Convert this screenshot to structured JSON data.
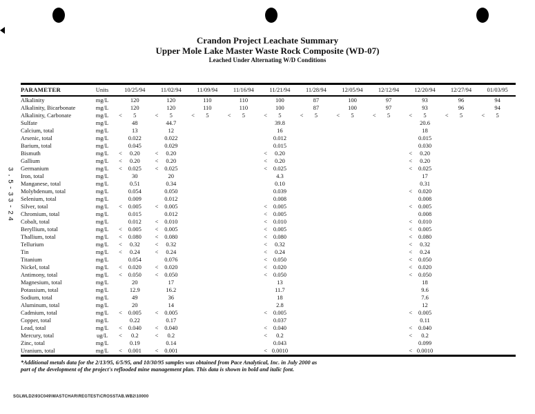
{
  "page": {
    "title": "Crandon Project Leachate Summary",
    "subtitle": "Upper Mole Lake Master Waste Rock Composite (WD-07)",
    "subtitle2": "Leached Under Alternating W/D Conditions",
    "side_label": "3.5-33-24",
    "footer_path": "SGLWLD2\\93C049\\WASTCHAR\\REGTEST\\CROSSTAB.WB2\\10000",
    "footnote": "*Additional metals data for the 2/13/95, 6/5/95, and 10/30/95 samples was obtained from Pace Analytical, Inc. in July 2000 as part of the development of the project's reflooded mine management plan.  This data is shown in bold and italic font.",
    "ink_color": "#121212",
    "paper_color": "#ffffff"
  },
  "table": {
    "param_header": "PARAMETER",
    "units_header": "Units",
    "date_columns": [
      "10/25/94",
      "11/02/94",
      "11/09/94",
      "11/16/94",
      "11/21/94",
      "11/28/94",
      "12/05/94",
      "12/12/94",
      "12/20/94",
      "12/27/94",
      "01/03/95"
    ],
    "rows": [
      {
        "parameter": "Alkalinity",
        "units": "mg/L",
        "values": [
          "120",
          "120",
          "110",
          "110",
          "100",
          "87",
          "100",
          "97",
          "93",
          "96",
          "94"
        ]
      },
      {
        "parameter": "Alkalinity, Bicarbonate",
        "units": "mg/L",
        "values": [
          "120",
          "120",
          "110",
          "110",
          "100",
          "87",
          "100",
          "97",
          "93",
          "96",
          "94"
        ]
      },
      {
        "parameter": "Alkalinity, Carbonate",
        "units": "mg/L",
        "values": [
          "< 5",
          "< 5",
          "< 5",
          "< 5",
          "< 5",
          "< 5",
          "< 5",
          "< 5",
          "< 5",
          "< 5",
          "< 5"
        ]
      },
      {
        "parameter": "Sulfate",
        "units": "mg/L",
        "values": [
          "48",
          "44.7",
          "",
          "",
          "39.8",
          "",
          "",
          "",
          "20.6",
          "",
          ""
        ]
      },
      {
        "parameter": "Calcium, total",
        "units": "mg/L",
        "values": [
          "13",
          "12",
          "",
          "",
          "16",
          "",
          "",
          "",
          "18",
          "",
          ""
        ]
      },
      {
        "parameter": "Arsenic, total",
        "units": "mg/L",
        "values": [
          "0.022",
          "0.022",
          "",
          "",
          "0.012",
          "",
          "",
          "",
          "0.015",
          "",
          ""
        ]
      },
      {
        "parameter": "Barium, total",
        "units": "mg/L",
        "values": [
          "0.045",
          "0.029",
          "",
          "",
          "0.015",
          "",
          "",
          "",
          "0.030",
          "",
          ""
        ]
      },
      {
        "parameter": "Bismuth",
        "units": "mg/L",
        "values": [
          "< 0.20",
          "< 0.20",
          "",
          "",
          "< 0.20",
          "",
          "",
          "",
          "< 0.20",
          "",
          ""
        ]
      },
      {
        "parameter": "Gallium",
        "units": "mg/L",
        "values": [
          "< 0.20",
          "< 0.20",
          "",
          "",
          "< 0.20",
          "",
          "",
          "",
          "< 0.20",
          "",
          ""
        ]
      },
      {
        "parameter": "Germanium",
        "units": "mg/L",
        "values": [
          "< 0.025",
          "< 0.025",
          "",
          "",
          "< 0.025",
          "",
          "",
          "",
          "< 0.025",
          "",
          ""
        ]
      },
      {
        "parameter": "Iron, total",
        "units": "mg/L",
        "values": [
          "30",
          "20",
          "",
          "",
          "4.3",
          "",
          "",
          "",
          "17",
          "",
          ""
        ]
      },
      {
        "parameter": "Manganese, total",
        "units": "mg/L",
        "values": [
          "0.51",
          "0.34",
          "",
          "",
          "0.10",
          "",
          "",
          "",
          "0.31",
          "",
          ""
        ]
      },
      {
        "parameter": "Molybdenum, total",
        "units": "mg/L",
        "values": [
          "0.054",
          "0.050",
          "",
          "",
          "0.039",
          "",
          "",
          "",
          "< 0.020",
          "",
          ""
        ]
      },
      {
        "parameter": "Selenium, total",
        "units": "mg/L",
        "values": [
          "0.009",
          "0.012",
          "",
          "",
          "0.008",
          "",
          "",
          "",
          "0.008",
          "",
          ""
        ]
      },
      {
        "parameter": "Silver, total",
        "units": "mg/L",
        "values": [
          "< 0.005",
          "< 0.005",
          "",
          "",
          "< 0.005",
          "",
          "",
          "",
          "< 0.005",
          "",
          ""
        ]
      },
      {
        "parameter": "Chromium, total",
        "units": "mg/L",
        "values": [
          "0.015",
          "0.012",
          "",
          "",
          "< 0.005",
          "",
          "",
          "",
          "0.008",
          "",
          ""
        ]
      },
      {
        "parameter": "Cobalt, total",
        "units": "mg/L",
        "values": [
          "0.012",
          "< 0.010",
          "",
          "",
          "< 0.010",
          "",
          "",
          "",
          "< 0.010",
          "",
          ""
        ]
      },
      {
        "parameter": "Beryllium, total",
        "units": "mg/L",
        "values": [
          "< 0.005",
          "< 0.005",
          "",
          "",
          "< 0.005",
          "",
          "",
          "",
          "< 0.005",
          "",
          ""
        ]
      },
      {
        "parameter": "Thallium, total",
        "units": "mg/L",
        "values": [
          "< 0.080",
          "< 0.080",
          "",
          "",
          "< 0.080",
          "",
          "",
          "",
          "< 0.080",
          "",
          ""
        ]
      },
      {
        "parameter": "Tellurium",
        "units": "mg/L",
        "values": [
          "< 0.32",
          "< 0.32",
          "",
          "",
          "< 0.32",
          "",
          "",
          "",
          "< 0.32",
          "",
          ""
        ]
      },
      {
        "parameter": "Tin",
        "units": "mg/L",
        "values": [
          "< 0.24",
          "< 0.24",
          "",
          "",
          "< 0.24",
          "",
          "",
          "",
          "< 0.24",
          "",
          ""
        ]
      },
      {
        "parameter": "Titanium",
        "units": "mg/L",
        "values": [
          "0.054",
          "0.076",
          "",
          "",
          "< 0.050",
          "",
          "",
          "",
          "< 0.050",
          "",
          ""
        ]
      },
      {
        "parameter": "Nickel, total",
        "units": "mg/L",
        "values": [
          "< 0.020",
          "< 0.020",
          "",
          "",
          "< 0.020",
          "",
          "",
          "",
          "< 0.020",
          "",
          ""
        ]
      },
      {
        "parameter": "Antimony, total",
        "units": "mg/L",
        "values": [
          "< 0.050",
          "< 0.050",
          "",
          "",
          "< 0.050",
          "",
          "",
          "",
          "< 0.050",
          "",
          ""
        ]
      },
      {
        "parameter": "Magnesium, total",
        "units": "mg/L",
        "values": [
          "20",
          "17",
          "",
          "",
          "13",
          "",
          "",
          "",
          "18",
          "",
          ""
        ]
      },
      {
        "parameter": "Potassium, total",
        "units": "mg/L",
        "values": [
          "12.9",
          "16.2",
          "",
          "",
          "11.7",
          "",
          "",
          "",
          "9.6",
          "",
          ""
        ]
      },
      {
        "parameter": "Sodium, total",
        "units": "mg/L",
        "values": [
          "49",
          "36",
          "",
          "",
          "18",
          "",
          "",
          "",
          "7.6",
          "",
          ""
        ]
      },
      {
        "parameter": "Aluminum, total",
        "units": "mg/L",
        "values": [
          "20",
          "14",
          "",
          "",
          "2.8",
          "",
          "",
          "",
          "12",
          "",
          ""
        ]
      },
      {
        "parameter": "Cadmium, total",
        "units": "mg/L",
        "values": [
          "< 0.005",
          "< 0.005",
          "",
          "",
          "< 0.005",
          "",
          "",
          "",
          "< 0.005",
          "",
          ""
        ]
      },
      {
        "parameter": "Copper, total",
        "units": "mg/L",
        "values": [
          "0.22",
          "0.17",
          "",
          "",
          "0.037",
          "",
          "",
          "",
          "0.11",
          "",
          ""
        ]
      },
      {
        "parameter": "Lead, total",
        "units": "mg/L",
        "values": [
          "< 0.040",
          "< 0.040",
          "",
          "",
          "< 0.040",
          "",
          "",
          "",
          "< 0.040",
          "",
          ""
        ]
      },
      {
        "parameter": "Mercury, total",
        "units": "ug/L",
        "values": [
          "< 0.2",
          "< 0.2",
          "",
          "",
          "< 0.2",
          "",
          "",
          "",
          "< 0.2",
          "",
          ""
        ]
      },
      {
        "parameter": "Zinc, total",
        "units": "mg/L",
        "values": [
          "0.19",
          "0.14",
          "",
          "",
          "0.043",
          "",
          "",
          "",
          "0.099",
          "",
          ""
        ]
      },
      {
        "parameter": "Uranium, total",
        "units": "mg/L",
        "values": [
          "< 0.001",
          "< 0.001",
          "",
          "",
          "< 0.0010",
          "",
          "",
          "",
          "< 0.0010",
          "",
          ""
        ]
      }
    ]
  }
}
